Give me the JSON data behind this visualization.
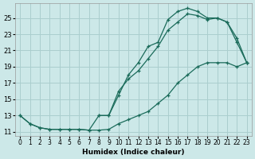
{
  "xlabel": "Humidex (Indice chaleur)",
  "bg_color": "#cce8e8",
  "grid_color": "#aacece",
  "line_color": "#1a6b5a",
  "xlim": [
    -0.5,
    23.5
  ],
  "ylim": [
    10.5,
    26.8
  ],
  "xticks": [
    0,
    1,
    2,
    3,
    4,
    5,
    6,
    7,
    8,
    9,
    10,
    11,
    12,
    13,
    14,
    15,
    16,
    17,
    18,
    19,
    20,
    21,
    22,
    23
  ],
  "yticks": [
    11,
    13,
    15,
    17,
    19,
    21,
    23,
    25
  ],
  "series1_x": [
    0,
    1,
    2,
    3,
    4,
    5,
    6,
    7,
    8,
    9,
    10,
    11,
    12,
    13,
    14,
    15,
    16,
    17,
    18,
    19,
    20,
    21,
    22,
    23
  ],
  "series1_y": [
    13,
    12,
    11.5,
    11.3,
    11.3,
    11.3,
    11.3,
    11.2,
    13.0,
    13.0,
    15.5,
    18.0,
    19.5,
    21.5,
    22.0,
    24.8,
    25.8,
    26.2,
    25.8,
    25.0,
    25.0,
    24.5,
    22.5,
    19.5
  ],
  "series2_x": [
    8,
    9,
    10,
    11,
    12,
    13,
    14,
    15,
    16,
    17,
    18,
    19,
    20,
    21,
    22,
    23
  ],
  "series2_y": [
    13.0,
    13.0,
    16.0,
    17.5,
    18.5,
    20.0,
    21.5,
    23.5,
    24.5,
    25.5,
    25.3,
    24.8,
    25.0,
    24.5,
    22.0,
    19.5
  ],
  "series3_x": [
    0,
    1,
    2,
    3,
    4,
    5,
    6,
    7,
    8,
    9,
    10,
    11,
    12,
    13,
    14,
    15,
    16,
    17,
    18,
    19,
    20,
    21,
    22,
    23
  ],
  "series3_y": [
    13,
    12,
    11.5,
    11.3,
    11.3,
    11.3,
    11.3,
    11.2,
    11.2,
    11.3,
    12.0,
    12.5,
    13.0,
    13.5,
    14.5,
    15.5,
    17.0,
    18.0,
    19.0,
    19.5,
    19.5,
    19.5,
    19.0,
    19.5
  ]
}
